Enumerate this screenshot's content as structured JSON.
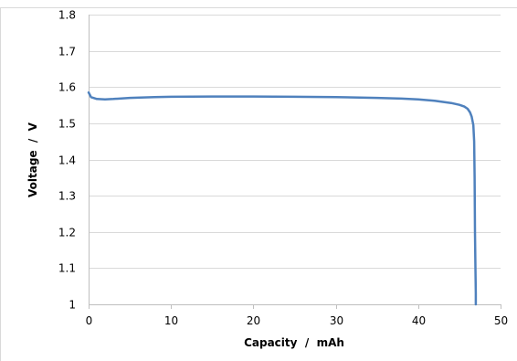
{
  "chart_data": {
    "type": "line",
    "title": "",
    "xlabel": "Capacity  /  mAh",
    "ylabel": "Voltage  /  V",
    "xlim": [
      0,
      50
    ],
    "ylim": [
      1,
      1.8
    ],
    "x_ticks": [
      "0",
      "10",
      "20",
      "30",
      "40",
      "50"
    ],
    "y_ticks": [
      "1",
      "1.1",
      "1.2",
      "1.3",
      "1.4",
      "1.5",
      "1.6",
      "1.7",
      "1.8"
    ],
    "grid": "horizontal",
    "legend": "none",
    "series": [
      {
        "color": "#4f81bd",
        "x": [
          0,
          0.3,
          1,
          2,
          3,
          5,
          8,
          10,
          15,
          20,
          25,
          30,
          35,
          38,
          40,
          42,
          44,
          45,
          45.6,
          46,
          46.3,
          46.5,
          46.7,
          46.8,
          46.85,
          46.9,
          46.95,
          47.0,
          47.0
        ],
        "y": [
          1.585,
          1.572,
          1.567,
          1.566,
          1.567,
          1.57,
          1.572,
          1.573,
          1.574,
          1.574,
          1.573,
          1.572,
          1.57,
          1.568,
          1.566,
          1.562,
          1.556,
          1.551,
          1.546,
          1.54,
          1.53,
          1.518,
          1.495,
          1.45,
          1.35,
          1.2,
          1.1,
          1.03,
          1.0
        ]
      }
    ]
  }
}
